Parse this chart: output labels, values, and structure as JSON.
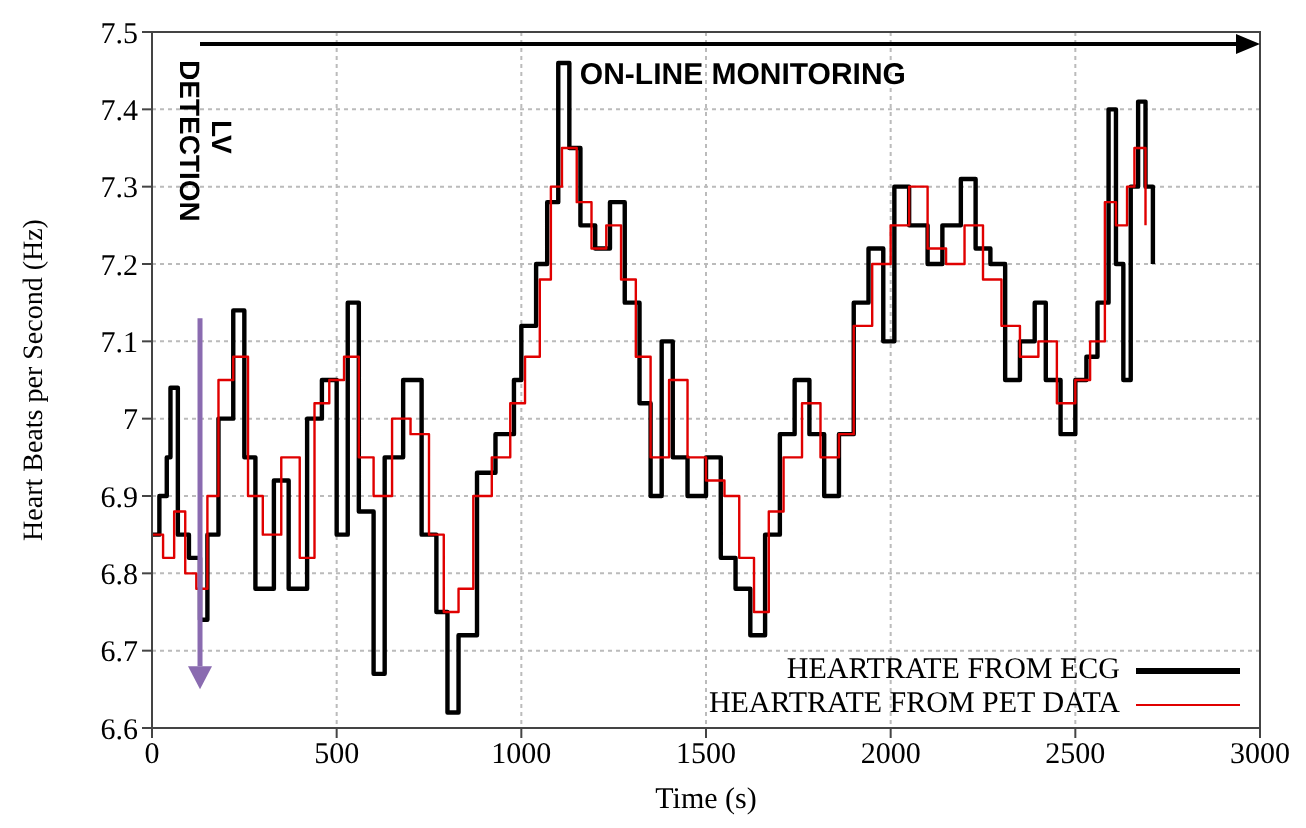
{
  "chart_data": {
    "type": "step",
    "xlabel": "Time (s)",
    "ylabel": "Heart Beats per Second (Hz)",
    "annotations": [
      "ON-LINE MONITORING",
      "LV DETECTION"
    ],
    "xlim": [
      0,
      3000
    ],
    "xticks": [
      0,
      500,
      1000,
      1500,
      2000,
      2500,
      3000
    ],
    "ylim": [
      6.6,
      7.5
    ],
    "yticks": [
      6.6,
      6.7,
      6.8,
      6.9,
      7,
      7.1,
      7.2,
      7.3,
      7.4,
      7.5
    ],
    "grid": true,
    "legend": "bottom right",
    "line_style": "solid",
    "marker": "none",
    "series": [
      {
        "name": "HEARTRATE FROM ECG",
        "color": "#000000",
        "x": [
          0,
          20,
          40,
          50,
          70,
          100,
          130,
          150,
          180,
          220,
          250,
          280,
          330,
          370,
          420,
          460,
          500,
          530,
          560,
          600,
          630,
          680,
          730,
          770,
          800,
          830,
          880,
          930,
          980,
          1000,
          1040,
          1070,
          1100,
          1130,
          1160,
          1200,
          1240,
          1280,
          1320,
          1350,
          1380,
          1410,
          1450,
          1500,
          1540,
          1580,
          1620,
          1660,
          1700,
          1740,
          1780,
          1820,
          1860,
          1900,
          1940,
          1980,
          2010,
          2050,
          2100,
          2140,
          2190,
          2230,
          2270,
          2310,
          2350,
          2390,
          2420,
          2460,
          2500,
          2530,
          2560,
          2590,
          2610,
          2630,
          2650,
          2670,
          2690,
          2710
        ],
        "values": [
          6.85,
          6.9,
          6.95,
          7.04,
          6.85,
          6.82,
          6.74,
          6.85,
          7,
          7.14,
          6.95,
          6.78,
          6.92,
          6.78,
          7,
          7.05,
          6.85,
          7.15,
          6.88,
          6.67,
          6.95,
          7.05,
          6.85,
          6.75,
          6.62,
          6.72,
          6.93,
          6.98,
          7.05,
          7.12,
          7.2,
          7.28,
          7.46,
          7.35,
          7.25,
          7.22,
          7.28,
          7.15,
          7.02,
          6.9,
          7.1,
          6.95,
          6.9,
          6.95,
          6.82,
          6.78,
          6.72,
          6.85,
          6.98,
          7.05,
          6.98,
          6.9,
          6.98,
          7.15,
          7.22,
          7.1,
          7.3,
          7.25,
          7.2,
          7.25,
          7.31,
          7.22,
          7.2,
          7.05,
          7.1,
          7.15,
          7.05,
          6.98,
          7.05,
          7.08,
          7.15,
          7.4,
          7.2,
          7.05,
          7.3,
          7.41,
          7.3,
          7.2
        ]
      },
      {
        "name": "HEARTRATE FROM PET DATA",
        "color": "#e00000",
        "x": [
          0,
          30,
          60,
          90,
          120,
          150,
          180,
          220,
          260,
          300,
          350,
          400,
          440,
          480,
          520,
          560,
          600,
          650,
          700,
          750,
          790,
          830,
          870,
          920,
          970,
          1010,
          1050,
          1080,
          1110,
          1150,
          1190,
          1230,
          1270,
          1310,
          1350,
          1400,
          1450,
          1500,
          1550,
          1590,
          1630,
          1670,
          1710,
          1760,
          1810,
          1860,
          1900,
          1950,
          2000,
          2050,
          2100,
          2150,
          2200,
          2250,
          2300,
          2350,
          2400,
          2450,
          2500,
          2540,
          2580,
          2610,
          2640,
          2660,
          2690
        ],
        "values": [
          6.85,
          6.82,
          6.88,
          6.8,
          6.78,
          6.9,
          7.05,
          7.08,
          6.9,
          6.85,
          6.95,
          6.82,
          7.02,
          7.05,
          7.08,
          6.95,
          6.9,
          7,
          6.98,
          6.85,
          6.75,
          6.78,
          6.9,
          6.95,
          7.02,
          7.08,
          7.18,
          7.3,
          7.35,
          7.28,
          7.22,
          7.25,
          7.18,
          7.08,
          6.95,
          7.05,
          6.95,
          6.92,
          6.9,
          6.82,
          6.75,
          6.88,
          6.95,
          7.02,
          6.95,
          6.98,
          7.12,
          7.2,
          7.25,
          7.3,
          7.22,
          7.2,
          7.25,
          7.18,
          7.12,
          7.08,
          7.1,
          7.02,
          7.05,
          7.1,
          7.28,
          7.25,
          7.3,
          7.35,
          7.25
        ]
      }
    ]
  }
}
